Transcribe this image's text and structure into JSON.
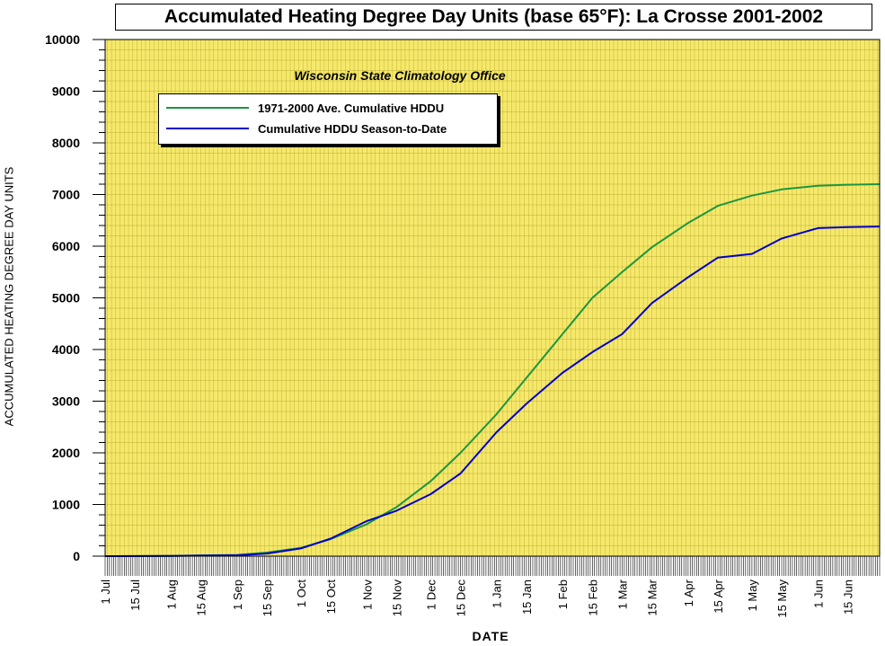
{
  "chart_data": {
    "type": "line",
    "title": "Accumulated Heating Degree Day Units (base 65°F): La Crosse 2001-2002",
    "subtitle": "Wisconsin State Climatology Office",
    "xlabel": "DATE",
    "ylabel": "ACCUMULATED HEATING DEGREE DAY UNITS",
    "ylim": [
      0,
      10000
    ],
    "yticks": [
      0,
      1000,
      2000,
      3000,
      4000,
      5000,
      6000,
      7000,
      8000,
      9000,
      10000
    ],
    "xlim": [
      "2001-07-01",
      "2002-06-30"
    ],
    "xtick_labels": [
      {
        "date": "2001-07-01",
        "label": "1 Jul"
      },
      {
        "date": "2001-07-15",
        "label": "15 Jul"
      },
      {
        "date": "2001-08-01",
        "label": "1 Aug"
      },
      {
        "date": "2001-08-15",
        "label": "15 Aug"
      },
      {
        "date": "2001-09-01",
        "label": "1 Sep"
      },
      {
        "date": "2001-09-15",
        "label": "15 Sep"
      },
      {
        "date": "2001-10-01",
        "label": "1 Oct"
      },
      {
        "date": "2001-10-15",
        "label": "15 Oct"
      },
      {
        "date": "2001-11-01",
        "label": "1 Nov"
      },
      {
        "date": "2001-11-15",
        "label": "15 Nov"
      },
      {
        "date": "2001-12-01",
        "label": "1 Dec"
      },
      {
        "date": "2001-12-15",
        "label": "15 Dec"
      },
      {
        "date": "2002-01-01",
        "label": "1 Jan"
      },
      {
        "date": "2002-01-15",
        "label": "15 Jan"
      },
      {
        "date": "2002-02-01",
        "label": "1 Feb"
      },
      {
        "date": "2002-02-15",
        "label": "15 Feb"
      },
      {
        "date": "2002-03-01",
        "label": "1 Mar"
      },
      {
        "date": "2002-03-15",
        "label": "15 Mar"
      },
      {
        "date": "2002-04-01",
        "label": "1 Apr"
      },
      {
        "date": "2002-04-15",
        "label": "15 Apr"
      },
      {
        "date": "2002-05-01",
        "label": "1 May"
      },
      {
        "date": "2002-05-15",
        "label": "15 May"
      },
      {
        "date": "2002-06-01",
        "label": "1 Jun"
      },
      {
        "date": "2002-06-15",
        "label": "15 Jun"
      }
    ],
    "grid": true,
    "legend_position": "top-left",
    "series": [
      {
        "name": "1971-2000 Ave. Cumulative HDDU",
        "color": "#1a9641",
        "points": [
          [
            "2001-07-01",
            0
          ],
          [
            "2001-08-01",
            5
          ],
          [
            "2001-08-15",
            15
          ],
          [
            "2001-09-01",
            25
          ],
          [
            "2001-09-15",
            70
          ],
          [
            "2001-10-01",
            160
          ],
          [
            "2001-10-15",
            330
          ],
          [
            "2001-11-01",
            620
          ],
          [
            "2001-11-15",
            950
          ],
          [
            "2001-12-01",
            1450
          ],
          [
            "2001-12-15",
            2000
          ],
          [
            "2002-01-01",
            2750
          ],
          [
            "2002-01-15",
            3450
          ],
          [
            "2002-02-01",
            4300
          ],
          [
            "2002-02-15",
            5000
          ],
          [
            "2002-03-01",
            5500
          ],
          [
            "2002-03-15",
            5980
          ],
          [
            "2002-04-01",
            6450
          ],
          [
            "2002-04-15",
            6780
          ],
          [
            "2002-05-01",
            6980
          ],
          [
            "2002-05-15",
            7100
          ],
          [
            "2002-06-01",
            7170
          ],
          [
            "2002-06-15",
            7190
          ],
          [
            "2002-06-30",
            7200
          ]
        ]
      },
      {
        "name": "Cumulative HDDU Season-to-Date",
        "color": "#0000cc",
        "points": [
          [
            "2001-07-01",
            0
          ],
          [
            "2001-08-01",
            5
          ],
          [
            "2001-08-15",
            10
          ],
          [
            "2001-09-01",
            15
          ],
          [
            "2001-09-15",
            50
          ],
          [
            "2001-10-01",
            150
          ],
          [
            "2001-10-15",
            340
          ],
          [
            "2001-11-01",
            680
          ],
          [
            "2001-11-15",
            880
          ],
          [
            "2001-12-01",
            1200
          ],
          [
            "2001-12-15",
            1600
          ],
          [
            "2002-01-01",
            2400
          ],
          [
            "2002-01-15",
            2950
          ],
          [
            "2002-02-01",
            3550
          ],
          [
            "2002-02-15",
            3950
          ],
          [
            "2002-03-01",
            4300
          ],
          [
            "2002-03-15",
            4900
          ],
          [
            "2002-04-01",
            5400
          ],
          [
            "2002-04-15",
            5780
          ],
          [
            "2002-05-01",
            5850
          ],
          [
            "2002-05-15",
            6150
          ],
          [
            "2002-06-01",
            6350
          ],
          [
            "2002-06-15",
            6370
          ],
          [
            "2002-06-30",
            6380
          ]
        ]
      }
    ]
  },
  "colors": {
    "plot_background": "#f5e86a",
    "grid_line": "#b8a830"
  }
}
